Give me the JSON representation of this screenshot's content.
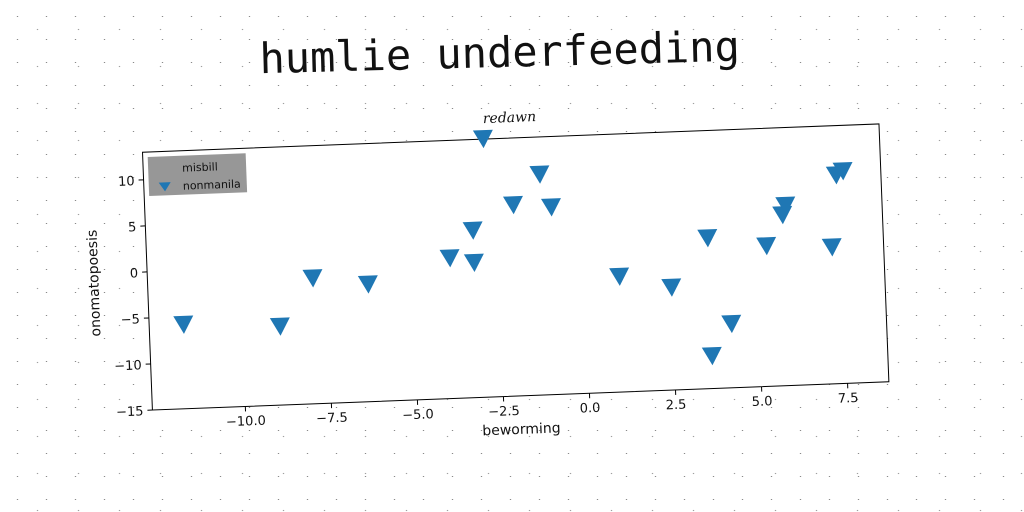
{
  "chart_data": {
    "type": "scatter",
    "title": "humlie underfeeding",
    "subtitle": "redawn",
    "xlabel": "beworming",
    "ylabel": "onomatopoesis",
    "xlim": [
      -12.7,
      8.7
    ],
    "ylim": [
      -15,
      13
    ],
    "xticks": [
      -10.0,
      -7.5,
      -5.0,
      -2.5,
      0.0,
      2.5,
      5.0,
      7.5
    ],
    "xtick_labels": [
      "−10.0",
      "−7.5",
      "−5.0",
      "−2.5",
      "0.0",
      "2.5",
      "5.0",
      "7.5"
    ],
    "yticks": [
      -15,
      -10,
      -5,
      0,
      5,
      10
    ],
    "ytick_labels": [
      "−15",
      "−10",
      "−5",
      "0",
      "5",
      "10"
    ],
    "legend": {
      "location": "upper-left",
      "entries": [
        "misbill",
        "nonmanila"
      ]
    },
    "grid": false,
    "marker_color": "#1f77b4",
    "series": [
      {
        "name": "nonmanila",
        "marker": "triangle-down",
        "points": [
          {
            "x": -11.7,
            "y": -5.9
          },
          {
            "x": -8.9,
            "y": -6.5
          },
          {
            "x": -7.9,
            "y": -1.4
          },
          {
            "x": -6.3,
            "y": -2.3
          },
          {
            "x": -3.9,
            "y": 0.2
          },
          {
            "x": -3.2,
            "y": 3.1
          },
          {
            "x": -3.2,
            "y": -0.4
          },
          {
            "x": -2.8,
            "y": 13.0
          },
          {
            "x": -2.0,
            "y": 5.7
          },
          {
            "x": -1.2,
            "y": 8.9
          },
          {
            "x": -0.9,
            "y": 5.3
          },
          {
            "x": 1.0,
            "y": -2.5
          },
          {
            "x": 2.5,
            "y": -3.9
          },
          {
            "x": 3.6,
            "y": 1.3
          },
          {
            "x": 3.6,
            "y": -11.5
          },
          {
            "x": 4.2,
            "y": -8.1
          },
          {
            "x": 5.3,
            "y": 0.2
          },
          {
            "x": 5.8,
            "y": 3.5
          },
          {
            "x": 5.9,
            "y": 4.5
          },
          {
            "x": 7.2,
            "y": -0.2
          },
          {
            "x": 7.4,
            "y": 7.6
          },
          {
            "x": 7.6,
            "y": 8.0
          }
        ]
      }
    ]
  }
}
